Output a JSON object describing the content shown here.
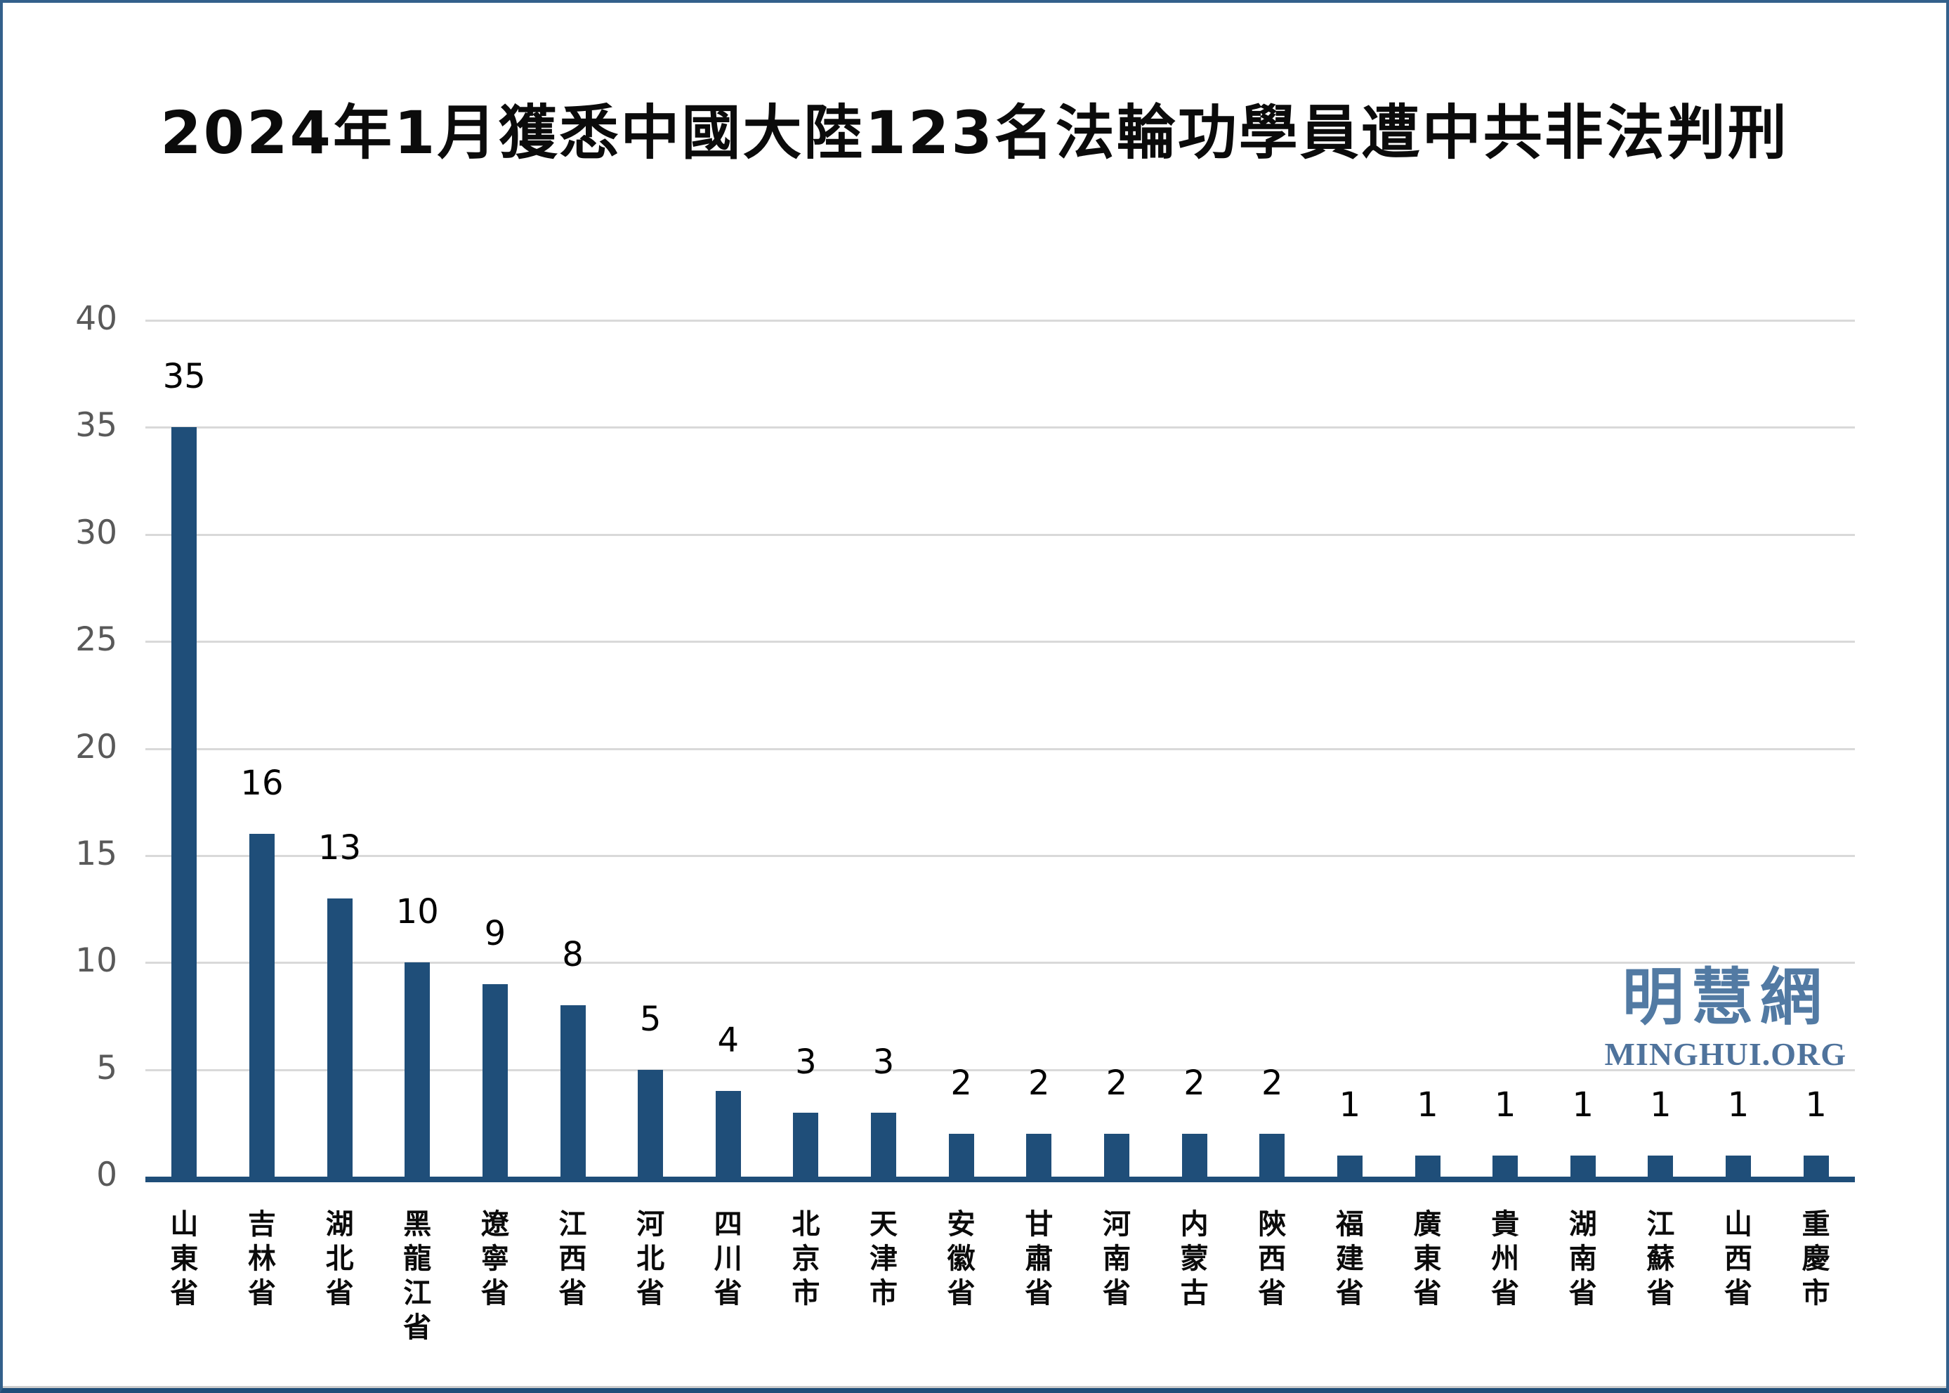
{
  "title": "2024年1月獲悉中國大陸123名法輪功學員遭中共非法判刑",
  "watermark": {
    "cjk": "明慧網",
    "latin": "MINGHUI.ORG"
  },
  "colors": {
    "bar": "#1f4e79",
    "axis_line": "#1f4e79",
    "gridline": "#d9d9d9",
    "y_tick_text": "#595959",
    "value_label_text": "#000000",
    "watermark_text": "#527aa3",
    "page_border": "#33608b"
  },
  "chart_data": {
    "type": "bar",
    "title": "2024年1月獲悉中國大陸123名法輪功學員遭中共非法判刑",
    "categories": [
      "山東省",
      "吉林省",
      "湖北省",
      "黑龍江省",
      "遼寧省",
      "江西省",
      "河北省",
      "四川省",
      "北京市",
      "天津市",
      "安徽省",
      "甘肅省",
      "河南省",
      "内蒙古",
      "陝西省",
      "福建省",
      "廣東省",
      "貴州省",
      "湖南省",
      "江蘇省",
      "山西省",
      "重慶市"
    ],
    "values": [
      35,
      16,
      13,
      10,
      9,
      8,
      5,
      4,
      3,
      3,
      2,
      2,
      2,
      2,
      2,
      1,
      1,
      1,
      1,
      1,
      1,
      1
    ],
    "xlabel": "",
    "ylabel": "",
    "ylim": [
      0,
      40
    ],
    "yticks": [
      0,
      5,
      10,
      15,
      20,
      25,
      30,
      35,
      40
    ],
    "grid": true,
    "legend": false,
    "value_labels_shown": true,
    "x_labels_orientation": "vertical-stacked"
  }
}
